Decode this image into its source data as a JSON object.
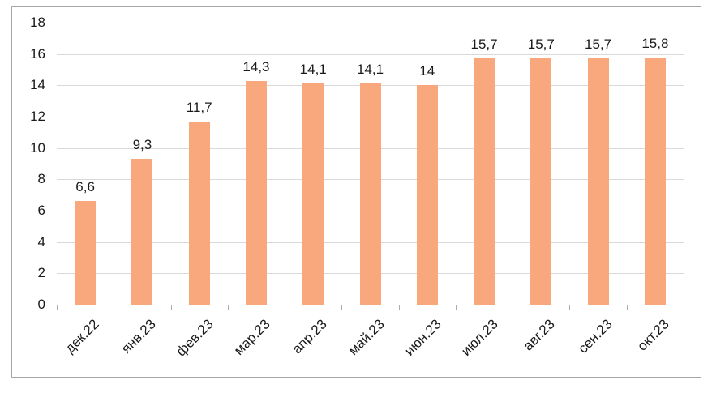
{
  "chart_data": {
    "type": "bar",
    "title": "",
    "xlabel": "",
    "ylabel": "",
    "categories": [
      "дек.22",
      "янв.23",
      "фев.23",
      "мар.23",
      "апр.23",
      "май.23",
      "июн.23",
      "июл.23",
      "авг.23",
      "сен.23",
      "окт.23"
    ],
    "values": [
      6.6,
      9.3,
      11.7,
      14.3,
      14.1,
      14.1,
      14,
      15.7,
      15.7,
      15.7,
      15.8
    ],
    "value_labels": [
      "6,6",
      "9,3",
      "11,7",
      "14,3",
      "14,1",
      "14,1",
      "14",
      "15,7",
      "15,7",
      "15,7",
      "15,8"
    ],
    "ylim": [
      0,
      18
    ],
    "ytick_step": 2,
    "ytick_labels": [
      "0",
      "2",
      "4",
      "6",
      "8",
      "10",
      "12",
      "14",
      "16",
      "18"
    ],
    "grid": true,
    "legend": false,
    "colors": {
      "bar": "#F8A87C",
      "gridline": "#D9D9D9",
      "axis": "#ABABAB",
      "tick": "#ABABAB",
      "text": "#1A1A1A",
      "frame_border": "#A6A6A6",
      "background": "#FFFFFF"
    }
  }
}
